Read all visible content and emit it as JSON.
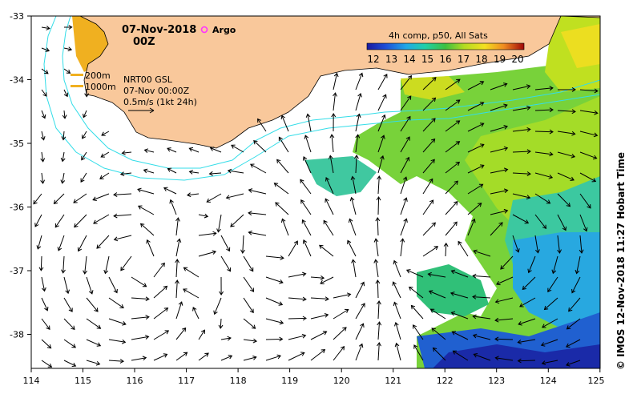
{
  "header": {
    "date": "07-Nov-2018",
    "time": "00Z",
    "argo_label": "Argo"
  },
  "legend": {
    "title": "4h comp, p50, All Sats",
    "ticks": [
      "12",
      "13",
      "14",
      "15",
      "16",
      "17",
      "18",
      "19",
      "20"
    ],
    "isobath_200": "200m",
    "isobath_1000": "1000m",
    "product": "NRT00 GSL",
    "product_time": "07-Nov 00:00Z",
    "scale_label": "0.5m/s (1kt 24h)"
  },
  "axes": {
    "x_ticks": [
      "114",
      "115",
      "116",
      "117",
      "118",
      "119",
      "120",
      "121",
      "122",
      "123",
      "124",
      "125"
    ],
    "y_ticks": [
      "-33",
      "-34",
      "-35",
      "-36",
      "-37",
      "-38"
    ]
  },
  "credit": "© IMOS 12-Nov-2018 11:27 Hobart Time",
  "colors": {
    "land": "#f9c89b",
    "isobath": "#33dde8",
    "argo": "#ff33ff",
    "sst_scale": [
      "#1a1aa0",
      "#2060e0",
      "#20b0e8",
      "#20d0a0",
      "#30c040",
      "#a0dc20",
      "#f0e020",
      "#f0a020",
      "#e03010",
      "#900000"
    ]
  }
}
